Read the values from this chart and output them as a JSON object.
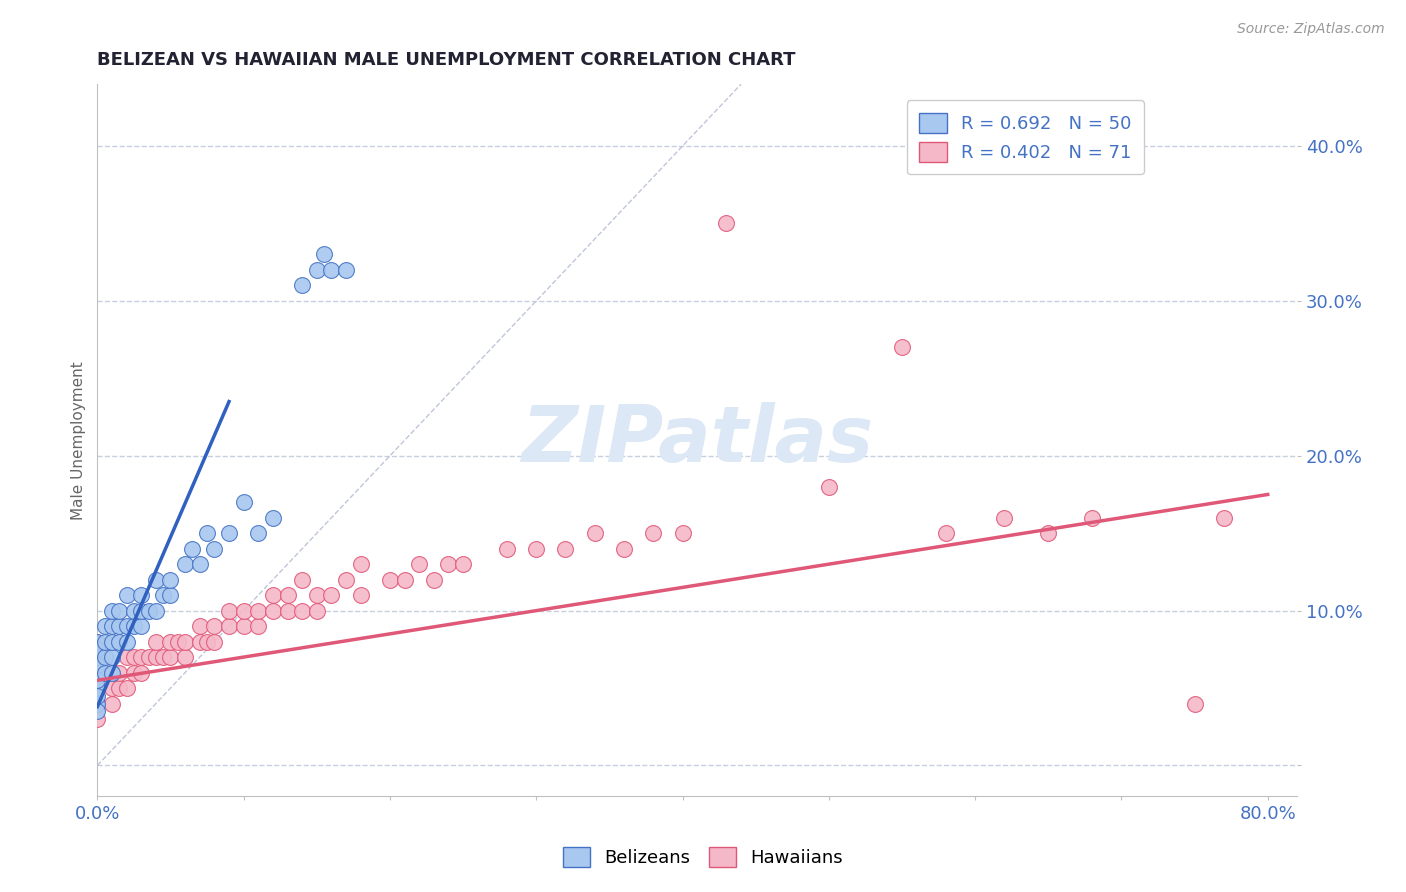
{
  "title": "BELIZEAN VS HAWAIIAN MALE UNEMPLOYMENT CORRELATION CHART",
  "source_text": "Source: ZipAtlas.com",
  "ylabel": "Male Unemployment",
  "xlim": [
    0.0,
    0.82
  ],
  "ylim": [
    -0.02,
    0.44
  ],
  "xticks": [
    0.0,
    0.1,
    0.2,
    0.3,
    0.4,
    0.5,
    0.6,
    0.7,
    0.8
  ],
  "xticklabels": [
    "0.0%",
    "",
    "",
    "",
    "",
    "",
    "",
    "",
    "80.0%"
  ],
  "yticks": [
    0.0,
    0.1,
    0.2,
    0.3,
    0.4
  ],
  "yticklabels": [
    "",
    "10.0%",
    "20.0%",
    "30.0%",
    "40.0%"
  ],
  "belizean_color": "#a8c8f0",
  "hawaiian_color": "#f5b8c8",
  "belizean_edge_color": "#4472c4",
  "hawaiian_edge_color": "#e05878",
  "belizean_line_color": "#3060c0",
  "hawaiian_line_color": "#e05878",
  "ref_line_color": "#b0b8d0",
  "legend_R_belizean": "R = 0.692",
  "legend_N_belizean": "N = 50",
  "legend_R_hawaiian": "R = 0.402",
  "legend_N_hawaiian": "N = 71",
  "tick_color": "#4472c4",
  "grid_color": "#c8d0e0",
  "watermark": "ZIPatlas",
  "watermark_color": "#dce8f5",
  "belizean_x": [
    0.0,
    0.0,
    0.0,
    0.0,
    0.0,
    0.0,
    0.0,
    0.0,
    0.0,
    0.0,
    0.005,
    0.005,
    0.005,
    0.005,
    0.01,
    0.01,
    0.01,
    0.01,
    0.01,
    0.015,
    0.015,
    0.015,
    0.02,
    0.02,
    0.02,
    0.025,
    0.025,
    0.03,
    0.03,
    0.03,
    0.035,
    0.04,
    0.04,
    0.045,
    0.05,
    0.05,
    0.06,
    0.065,
    0.07,
    0.075,
    0.08,
    0.09,
    0.1,
    0.11,
    0.12,
    0.14,
    0.15,
    0.155,
    0.16,
    0.17
  ],
  "belizean_y": [
    0.04,
    0.05,
    0.06,
    0.07,
    0.08,
    0.055,
    0.065,
    0.075,
    0.045,
    0.035,
    0.06,
    0.07,
    0.08,
    0.09,
    0.07,
    0.08,
    0.09,
    0.06,
    0.1,
    0.08,
    0.09,
    0.1,
    0.08,
    0.09,
    0.11,
    0.09,
    0.1,
    0.09,
    0.1,
    0.11,
    0.1,
    0.1,
    0.12,
    0.11,
    0.11,
    0.12,
    0.13,
    0.14,
    0.13,
    0.15,
    0.14,
    0.15,
    0.17,
    0.15,
    0.16,
    0.31,
    0.32,
    0.33,
    0.32,
    0.32
  ],
  "hawaiian_x": [
    0.0,
    0.0,
    0.0,
    0.0,
    0.0,
    0.0,
    0.01,
    0.01,
    0.01,
    0.015,
    0.015,
    0.02,
    0.02,
    0.025,
    0.025,
    0.03,
    0.03,
    0.035,
    0.04,
    0.04,
    0.045,
    0.05,
    0.05,
    0.055,
    0.06,
    0.06,
    0.07,
    0.07,
    0.075,
    0.08,
    0.08,
    0.09,
    0.09,
    0.1,
    0.1,
    0.11,
    0.11,
    0.12,
    0.12,
    0.13,
    0.13,
    0.14,
    0.14,
    0.15,
    0.15,
    0.16,
    0.17,
    0.18,
    0.18,
    0.2,
    0.21,
    0.22,
    0.23,
    0.24,
    0.25,
    0.28,
    0.3,
    0.32,
    0.34,
    0.36,
    0.38,
    0.4,
    0.43,
    0.5,
    0.55,
    0.58,
    0.62,
    0.65,
    0.68,
    0.75,
    0.77
  ],
  "hawaiian_y": [
    0.03,
    0.04,
    0.05,
    0.06,
    0.07,
    0.08,
    0.04,
    0.05,
    0.06,
    0.05,
    0.06,
    0.05,
    0.07,
    0.06,
    0.07,
    0.06,
    0.07,
    0.07,
    0.07,
    0.08,
    0.07,
    0.07,
    0.08,
    0.08,
    0.07,
    0.08,
    0.08,
    0.09,
    0.08,
    0.08,
    0.09,
    0.09,
    0.1,
    0.09,
    0.1,
    0.09,
    0.1,
    0.1,
    0.11,
    0.1,
    0.11,
    0.1,
    0.12,
    0.1,
    0.11,
    0.11,
    0.12,
    0.11,
    0.13,
    0.12,
    0.12,
    0.13,
    0.12,
    0.13,
    0.13,
    0.14,
    0.14,
    0.14,
    0.15,
    0.14,
    0.15,
    0.15,
    0.35,
    0.18,
    0.27,
    0.15,
    0.16,
    0.15,
    0.16,
    0.04,
    0.16
  ],
  "belizean_trend_x": [
    0.0,
    0.09
  ],
  "belizean_trend_y": [
    0.038,
    0.235
  ],
  "hawaiian_trend_x": [
    0.0,
    0.8
  ],
  "hawaiian_trend_y": [
    0.055,
    0.175
  ],
  "ref_line_x": [
    0.0,
    0.44
  ],
  "ref_line_y": [
    0.0,
    0.44
  ]
}
